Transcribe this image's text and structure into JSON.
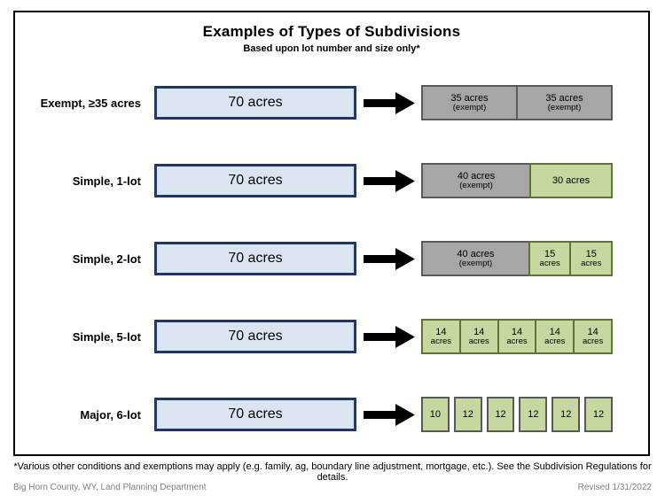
{
  "title": "Examples of Types of Subdivisions",
  "subtitle": "Based upon lot number and size only*",
  "colors": {
    "source_fill": "#dbe5f1",
    "source_border": "#1f3864",
    "gray_fill": "#a6a6a6",
    "gray_border": "#595959",
    "green_fill": "#c6d79f",
    "green_border": "#5e7434",
    "arrow": "#000000"
  },
  "rows": [
    {
      "label": "Exempt, ≥35 acres",
      "source": "70 acres",
      "gapped": false,
      "results": [
        {
          "line1": "35 acres",
          "line2": "(exempt)",
          "style": "gray",
          "flex": 35
        },
        {
          "line1": "35 acres",
          "line2": "(exempt)",
          "style": "gray",
          "flex": 35
        }
      ]
    },
    {
      "label": "Simple, 1-lot",
      "source": "70 acres",
      "gapped": false,
      "results": [
        {
          "line1": "40 acres",
          "line2": "(exempt)",
          "style": "gray",
          "flex": 40
        },
        {
          "line1": "30 acres",
          "line2": "",
          "style": "green",
          "flex": 30
        }
      ]
    },
    {
      "label": "Simple, 2-lot",
      "source": "70 acres",
      "gapped": false,
      "results": [
        {
          "line1": "40 acres",
          "line2": "(exempt)",
          "style": "gray",
          "flex": 40
        },
        {
          "line1": "15",
          "line2": "acres",
          "style": "green",
          "flex": 15
        },
        {
          "line1": "15",
          "line2": "acres",
          "style": "green",
          "flex": 15
        }
      ]
    },
    {
      "label": "Simple, 5-lot",
      "source": "70 acres",
      "gapped": false,
      "results": [
        {
          "line1": "14",
          "line2": "acres",
          "style": "green",
          "flex": 14
        },
        {
          "line1": "14",
          "line2": "acres",
          "style": "green",
          "flex": 14
        },
        {
          "line1": "14",
          "line2": "acres",
          "style": "green",
          "flex": 14
        },
        {
          "line1": "14",
          "line2": "acres",
          "style": "green",
          "flex": 14
        },
        {
          "line1": "14",
          "line2": "acres",
          "style": "green",
          "flex": 14
        }
      ]
    },
    {
      "label": "Major, 6-lot",
      "source": "70 acres",
      "gapped": true,
      "results": [
        {
          "line1": "10",
          "line2": "",
          "style": "green-graybd",
          "flex": 1
        },
        {
          "line1": "12",
          "line2": "",
          "style": "green-graybd",
          "flex": 1
        },
        {
          "line1": "12",
          "line2": "",
          "style": "green-graybd",
          "flex": 1
        },
        {
          "line1": "12",
          "line2": "",
          "style": "green-graybd",
          "flex": 1
        },
        {
          "line1": "12",
          "line2": "",
          "style": "green-graybd",
          "flex": 1
        },
        {
          "line1": "12",
          "line2": "",
          "style": "green-graybd",
          "flex": 1
        }
      ]
    }
  ],
  "footnote": "*Various other conditions and exemptions may apply (e.g. family, ag, boundary line adjustment, mortgage, etc.). See the Subdivision Regulations for details.",
  "footer": {
    "left": "Big Horn County, WY, Land Planning Department",
    "right": "Revised 1/31/2022"
  }
}
